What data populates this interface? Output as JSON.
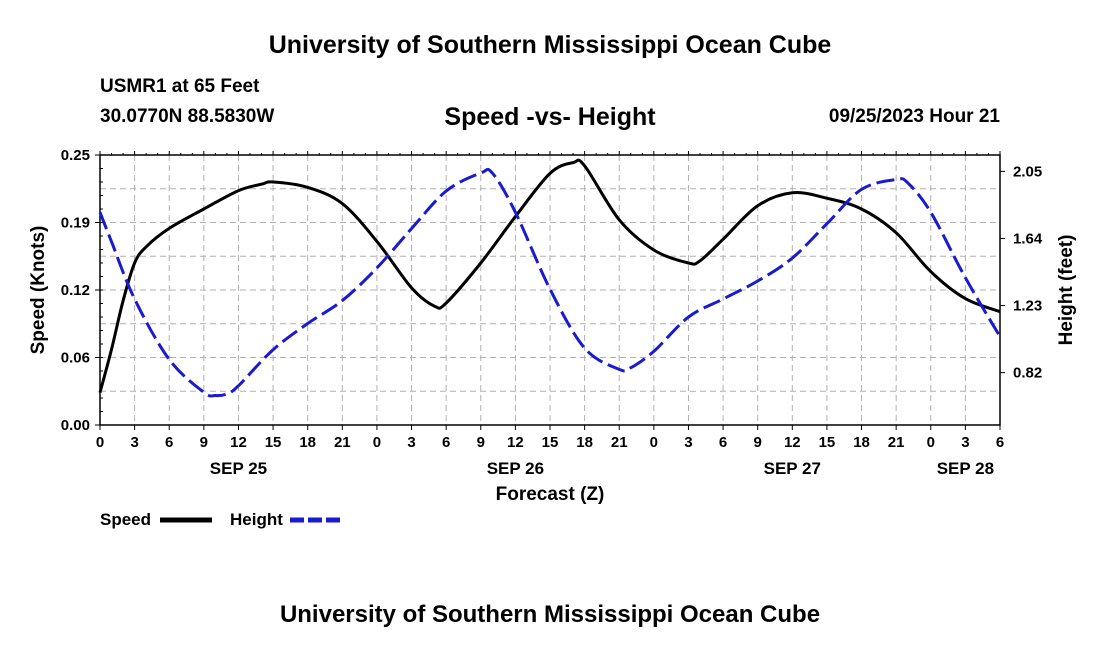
{
  "header": {
    "title": "University of Southern Mississippi Ocean Cube",
    "station": "USMR1 at 65 Feet",
    "coords": "30.0770N  88.5830W",
    "datetime": "09/25/2023 Hour 21",
    "footer_title": "University of Southern Mississippi Ocean Cube"
  },
  "legend": {
    "speed_label": "Speed",
    "height_label": "Height"
  },
  "colors": {
    "speed": "#000000",
    "height": "#1a1ad0",
    "grid": "#b0b0b0"
  },
  "chart_data": {
    "type": "line",
    "title": "Speed -vs- Height",
    "xlabel": "Forecast (Z)",
    "ylabel": "Speed (Knots)",
    "y2label": "Height (feet)",
    "xlim": [
      0,
      78
    ],
    "ylim": [
      0,
      0.25
    ],
    "y2lim": [
      0.5,
      2.15
    ],
    "yticks": [
      "0.00",
      "0.06",
      "0.12",
      "0.19",
      "0.25"
    ],
    "y2ticks": [
      "0.82",
      "1.23",
      "1.64",
      "2.05"
    ],
    "xticks": [
      "0",
      "3",
      "6",
      "9",
      "12",
      "15",
      "18",
      "21",
      "0",
      "3",
      "6",
      "9",
      "12",
      "15",
      "18",
      "21",
      "0",
      "3",
      "6",
      "9",
      "12",
      "15",
      "18",
      "21",
      "0",
      "3",
      "6"
    ],
    "day_labels": [
      {
        "label": "SEP 25",
        "hour": 12
      },
      {
        "label": "SEP 26",
        "hour": 36
      },
      {
        "label": "SEP 27",
        "hour": 60
      },
      {
        "label": "SEP 28",
        "hour": 75
      }
    ],
    "series": [
      {
        "name": "Speed",
        "axis": "left",
        "style": "solid",
        "x": [
          0,
          1,
          2,
          3,
          4,
          6,
          9,
          12,
          14,
          15,
          18,
          21,
          24,
          27,
          29,
          30,
          33,
          36,
          39,
          41,
          42,
          45,
          48,
          51,
          52,
          54,
          57,
          60,
          63,
          66,
          69,
          72,
          75,
          78
        ],
        "values": [
          0.03,
          0.07,
          0.115,
          0.15,
          0.165,
          0.182,
          0.2,
          0.217,
          0.223,
          0.225,
          0.22,
          0.205,
          0.17,
          0.127,
          0.11,
          0.113,
          0.15,
          0.193,
          0.233,
          0.243,
          0.24,
          0.19,
          0.162,
          0.15,
          0.152,
          0.172,
          0.203,
          0.215,
          0.21,
          0.2,
          0.178,
          0.142,
          0.117,
          0.105
        ]
      },
      {
        "name": "Height",
        "axis": "right",
        "style": "dashed",
        "x": [
          0,
          1,
          3,
          6,
          9,
          10,
          11,
          12,
          15,
          18,
          21,
          24,
          27,
          30,
          33,
          34,
          36,
          39,
          42,
          45,
          46,
          48,
          51,
          54,
          57,
          60,
          63,
          66,
          69,
          70,
          72,
          75,
          78
        ],
        "values": [
          1.8,
          1.62,
          1.27,
          0.9,
          0.7,
          0.68,
          0.69,
          0.74,
          0.96,
          1.12,
          1.26,
          1.46,
          1.7,
          1.93,
          2.04,
          2.04,
          1.8,
          1.33,
          0.97,
          0.84,
          0.85,
          0.95,
          1.16,
          1.27,
          1.38,
          1.52,
          1.73,
          1.94,
          2.0,
          1.98,
          1.8,
          1.4,
          1.04
        ]
      }
    ]
  }
}
